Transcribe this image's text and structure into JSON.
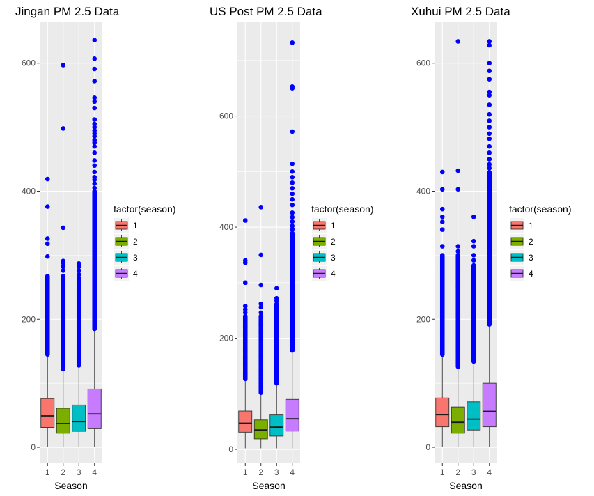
{
  "chart_data": [
    {
      "type": "boxplot",
      "title": "Jingan PM 2.5 Data",
      "xlabel": "Season",
      "ylabel": "",
      "categories": [
        "1",
        "2",
        "3",
        "4"
      ],
      "yticks": [
        "0",
        "200",
        "400",
        "600"
      ],
      "ylim": [
        -25,
        665
      ],
      "grid": true,
      "legend_placement": "right",
      "legend": {
        "title": "factor(season)",
        "entries": [
          "1",
          "2",
          "3",
          "4"
        ]
      },
      "boxes": [
        {
          "category": "1",
          "q1": 31,
          "median": 49,
          "q3": 76,
          "whisker_low": 1,
          "whisker_high": 143
        },
        {
          "category": "2",
          "q1": 22,
          "median": 37,
          "q3": 61,
          "whisker_low": 1,
          "whisker_high": 120
        },
        {
          "category": "3",
          "q1": 25,
          "median": 40,
          "q3": 66,
          "whisker_low": 1,
          "whisker_high": 127
        },
        {
          "category": "4",
          "q1": 29,
          "median": 52,
          "q3": 91,
          "whisker_low": 1,
          "whisker_high": 183
        }
      ],
      "outliers": [
        {
          "category": "1",
          "dense_min": 145,
          "dense_max": 268,
          "values": [
            298,
            318,
            326,
            376,
            419
          ]
        },
        {
          "category": "2",
          "dense_min": 122,
          "dense_max": 268,
          "values": [
            276,
            282,
            288,
            291,
            343,
            498,
            597
          ]
        },
        {
          "category": "3",
          "dense_min": 128,
          "dense_max": 265,
          "values": [
            270,
            276,
            282,
            287
          ]
        },
        {
          "category": "4",
          "dense_min": 185,
          "dense_max": 400,
          "values": [
            405,
            412,
            418,
            422,
            430,
            440,
            448,
            460,
            470,
            476,
            480,
            486,
            490,
            495,
            500,
            505,
            512,
            530,
            540,
            546,
            572,
            591,
            607,
            636
          ]
        }
      ],
      "colors": {
        "fills": [
          "#F8766D",
          "#7CAE00",
          "#00BFC4",
          "#C77CFF"
        ],
        "outlier": "#0000FF",
        "panel_bg": "#EBEBEB",
        "grid": "#FFFFFF"
      }
    },
    {
      "type": "boxplot",
      "title": "US Post PM 2.5 Data",
      "xlabel": "Season",
      "ylabel": "",
      "categories": [
        "1",
        "2",
        "3",
        "4"
      ],
      "yticks": [
        "0",
        "200",
        "400",
        "600"
      ],
      "ylim": [
        -25,
        770
      ],
      "grid": true,
      "legend_placement": "right",
      "legend": {
        "title": "factor(season)",
        "entries": [
          "1",
          "2",
          "3",
          "4"
        ]
      },
      "boxes": [
        {
          "category": "1",
          "q1": 31,
          "median": 47,
          "q3": 69,
          "whisker_low": 2,
          "whisker_high": 124
        },
        {
          "category": "2",
          "q1": 19,
          "median": 35,
          "q3": 53,
          "whisker_low": 2,
          "whisker_high": 100
        },
        {
          "category": "3",
          "q1": 24,
          "median": 40,
          "q3": 62,
          "whisker_low": 2,
          "whisker_high": 117
        },
        {
          "category": "4",
          "q1": 33,
          "median": 55,
          "q3": 90,
          "whisker_low": 2,
          "whisker_high": 176
        }
      ],
      "outliers": [
        {
          "category": "1",
          "dense_min": 127,
          "dense_max": 240,
          "values": [
            246,
            252,
            258,
            300,
            336,
            340,
            412
          ]
        },
        {
          "category": "2",
          "dense_min": 102,
          "dense_max": 240,
          "values": [
            246,
            256,
            262,
            296,
            350,
            436
          ]
        },
        {
          "category": "3",
          "dense_min": 119,
          "dense_max": 262,
          "values": [
            268,
            272,
            290
          ]
        },
        {
          "category": "4",
          "dense_min": 178,
          "dense_max": 390,
          "values": [
            396,
            402,
            410,
            418,
            426,
            440,
            450,
            460,
            470,
            480,
            490,
            500,
            514,
            572,
            650,
            653,
            732
          ]
        }
      ],
      "colors": {
        "fills": [
          "#F8766D",
          "#7CAE00",
          "#00BFC4",
          "#C77CFF"
        ],
        "outlier": "#0000FF",
        "panel_bg": "#EBEBEB",
        "grid": "#FFFFFF"
      }
    },
    {
      "type": "boxplot",
      "title": "Xuhui PM 2.5 Data",
      "xlabel": "Season",
      "ylabel": "",
      "categories": [
        "1",
        "2",
        "3",
        "4"
      ],
      "yticks": [
        "0",
        "200",
        "400",
        "600"
      ],
      "ylim": [
        -25,
        665
      ],
      "grid": true,
      "legend_placement": "right",
      "legend": {
        "title": "factor(season)",
        "entries": [
          "1",
          "2",
          "3",
          "4"
        ]
      },
      "boxes": [
        {
          "category": "1",
          "q1": 32,
          "median": 51,
          "q3": 77,
          "whisker_low": 1,
          "whisker_high": 143
        },
        {
          "category": "2",
          "q1": 22,
          "median": 39,
          "q3": 63,
          "whisker_low": 1,
          "whisker_high": 124
        },
        {
          "category": "3",
          "q1": 27,
          "median": 44,
          "q3": 71,
          "whisker_low": 1,
          "whisker_high": 132
        },
        {
          "category": "4",
          "q1": 32,
          "median": 56,
          "q3": 100,
          "whisker_low": 1,
          "whisker_high": 190
        }
      ],
      "outliers": [
        {
          "category": "1",
          "dense_min": 145,
          "dense_max": 300,
          "values": [
            314,
            340,
            352,
            360,
            372,
            403,
            430
          ]
        },
        {
          "category": "2",
          "dense_min": 126,
          "dense_max": 300,
          "values": [
            306,
            314,
            403,
            432,
            634
          ]
        },
        {
          "category": "3",
          "dense_min": 134,
          "dense_max": 285,
          "values": [
            292,
            300,
            314,
            322,
            360
          ]
        },
        {
          "category": "4",
          "dense_min": 192,
          "dense_max": 430,
          "values": [
            436,
            442,
            450,
            460,
            470,
            482,
            490,
            500,
            510,
            520,
            535,
            550,
            555,
            575,
            588,
            600,
            628,
            634
          ]
        }
      ],
      "colors": {
        "fills": [
          "#F8766D",
          "#7CAE00",
          "#00BFC4",
          "#C77CFF"
        ],
        "outlier": "#0000FF",
        "panel_bg": "#EBEBEB",
        "grid": "#FFFFFF"
      }
    }
  ]
}
